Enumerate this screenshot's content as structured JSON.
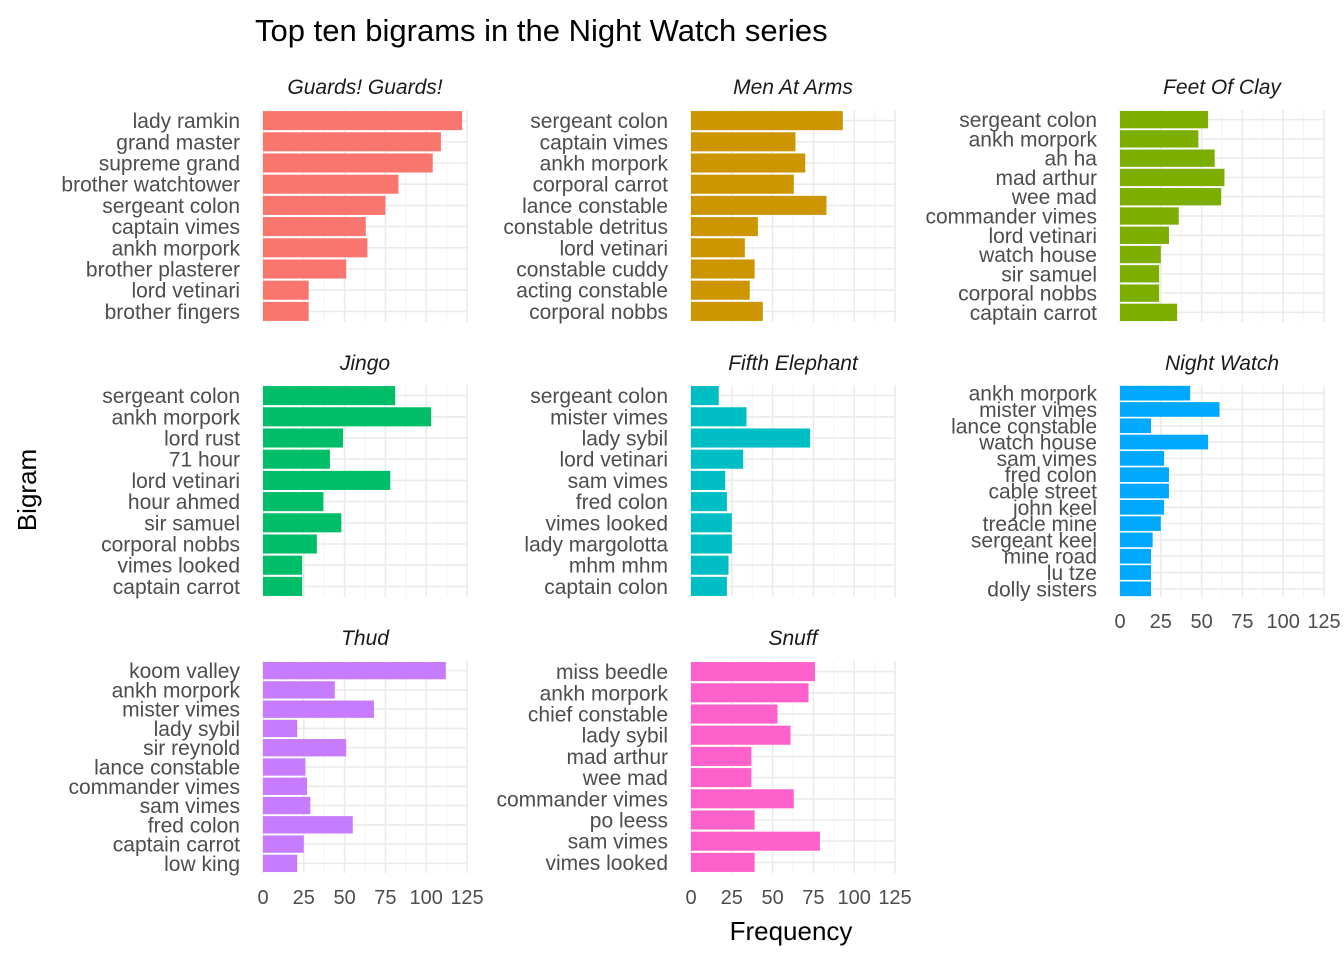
{
  "chart_data": {
    "type": "bar",
    "orientation": "horizontal",
    "layout": "facet_wrap",
    "title": "Top ten bigrams in the Night Watch series",
    "xlabel": "Frequency",
    "ylabel": "Bigram",
    "xlim": [
      0,
      125
    ],
    "x_ticks": [
      "0",
      "25",
      "50",
      "75",
      "100",
      "125"
    ],
    "grid": true,
    "legend": "none",
    "facets": [
      {
        "name": "Guards! Guards!",
        "color": "#F8766D",
        "categories": [
          "lady ramkin",
          "grand master",
          "supreme grand",
          "brother watchtower",
          "sergeant colon",
          "captain vimes",
          "ankh morpork",
          "brother plasterer",
          "lord vetinari",
          "brother fingers"
        ],
        "values": [
          122,
          109,
          104,
          83,
          75,
          63,
          64,
          51,
          28,
          28
        ]
      },
      {
        "name": "Men At Arms",
        "color": "#CD9600",
        "categories": [
          "sergeant colon",
          "captain vimes",
          "ankh morpork",
          "corporal carrot",
          "lance constable",
          "constable detritus",
          "lord vetinari",
          "constable cuddy",
          "acting constable",
          "corporal nobbs"
        ],
        "values": [
          93,
          64,
          70,
          63,
          83,
          41,
          33,
          39,
          36,
          44
        ]
      },
      {
        "name": "Feet Of Clay",
        "color": "#7CAE00",
        "categories": [
          "sergeant colon",
          "ankh morpork",
          "ah ha",
          "mad arthur",
          "wee mad",
          "commander vimes",
          "lord vetinari",
          "watch house",
          "sir samuel",
          "corporal nobbs",
          "captain carrot"
        ],
        "values": [
          54,
          48,
          58,
          64,
          62,
          36,
          30,
          25,
          24,
          24,
          35
        ]
      },
      {
        "name": "Jingo",
        "color": "#00BE67",
        "categories": [
          "sergeant colon",
          "ankh morpork",
          "lord rust",
          "71 hour",
          "lord vetinari",
          "hour ahmed",
          "sir samuel",
          "corporal nobbs",
          "vimes looked",
          "captain carrot"
        ],
        "values": [
          81,
          103,
          49,
          41,
          78,
          37,
          48,
          33,
          24,
          24
        ]
      },
      {
        "name": "Fifth Elephant",
        "color": "#00BFC4",
        "categories": [
          "sergeant colon",
          "mister vimes",
          "lady sybil",
          "lord vetinari",
          "sam vimes",
          "fred colon",
          "vimes looked",
          "lady margolotta",
          "mhm mhm",
          "captain colon"
        ],
        "values": [
          17,
          34,
          73,
          32,
          21,
          22,
          25,
          25,
          23,
          22
        ]
      },
      {
        "name": "Night Watch",
        "color": "#00A9FF",
        "categories": [
          "ankh morpork",
          "mister vimes",
          "lance constable",
          "watch house",
          "sam vimes",
          "fred colon",
          "cable street",
          "john keel",
          "treacle mine",
          "sergeant keel",
          "mine road",
          "lu tze",
          "dolly sisters"
        ],
        "values": [
          43,
          61,
          19,
          54,
          27,
          30,
          30,
          27,
          25,
          20,
          19,
          19,
          19
        ]
      },
      {
        "name": "Thud",
        "color": "#C77CFF",
        "categories": [
          "koom valley",
          "ankh morpork",
          "mister vimes",
          "lady sybil",
          "sir reynold",
          "lance constable",
          "commander vimes",
          "sam vimes",
          "fred colon",
          "captain carrot",
          "low king"
        ],
        "values": [
          112,
          44,
          68,
          21,
          51,
          26,
          27,
          29,
          55,
          25,
          21
        ]
      },
      {
        "name": "Snuff",
        "color": "#FF61CC",
        "categories": [
          "miss beedle",
          "ankh morpork",
          "chief constable",
          "lady sybil",
          "mad arthur",
          "wee mad",
          "commander vimes",
          "po leess",
          "sam vimes",
          "vimes looked"
        ],
        "values": [
          76,
          72,
          53,
          61,
          37,
          37,
          63,
          39,
          79,
          39
        ]
      }
    ]
  }
}
